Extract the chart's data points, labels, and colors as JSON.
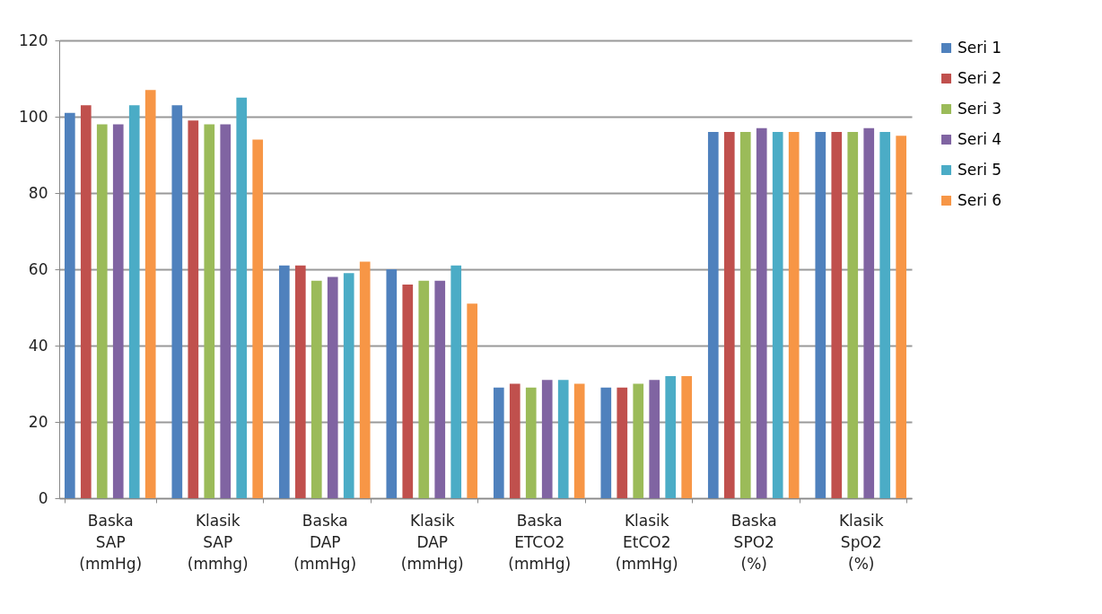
{
  "chart_data": {
    "type": "bar",
    "categories": [
      "Baska SAP (mmHg)",
      "Klasik SAP (mmhg)",
      "Baska DAP (mmHg)",
      "Klasik DAP (mmHg)",
      "Baska ETCO2 (mmHg)",
      "Klasik EtCO2 (mmHg)",
      "Baska SPO2 (%)",
      "Klasik SpO2 (%)"
    ],
    "series": [
      {
        "name": "Seri 1",
        "color": "#4f81bd",
        "values": [
          101,
          103,
          61,
          60,
          29,
          29,
          96,
          96
        ]
      },
      {
        "name": "Seri 2",
        "color": "#c0504d",
        "values": [
          103,
          99,
          61,
          56,
          30,
          29,
          96,
          96
        ]
      },
      {
        "name": "Seri 3",
        "color": "#9bbb59",
        "values": [
          98,
          98,
          57,
          57,
          29,
          30,
          96,
          96
        ]
      },
      {
        "name": "Seri 4",
        "color": "#8064a2",
        "values": [
          98,
          98,
          58,
          57,
          31,
          31,
          97,
          97
        ]
      },
      {
        "name": "Seri 5",
        "color": "#4bacc6",
        "values": [
          103,
          105,
          59,
          61,
          31,
          32,
          96,
          96
        ]
      },
      {
        "name": "Seri 6",
        "color": "#f79646",
        "values": [
          107,
          94,
          62,
          51,
          30,
          32,
          96,
          95
        ]
      }
    ],
    "ylim": [
      0,
      120
    ],
    "yticks": [
      0,
      20,
      40,
      60,
      80,
      100,
      120
    ],
    "grid": "y",
    "legend": "right"
  }
}
